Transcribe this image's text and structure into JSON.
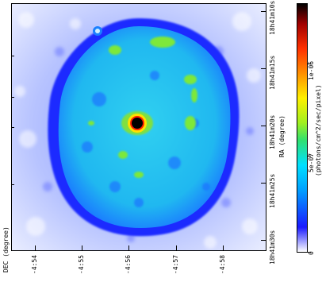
{
  "dec_axis": {
    "label": "DEC (degree)",
    "ticks": [
      "-4:54",
      "-4:55",
      "-4:56",
      "-4:57",
      "-4:58"
    ]
  },
  "ra_axis": {
    "label": "RA (degree)",
    "ticks": [
      "18h41m10s",
      "18h41m15s",
      "18h41m20s",
      "18h41m25s",
      "18h41m30s"
    ]
  },
  "colorbar": {
    "label": "(photons/cm^2/sec/pixel)",
    "ticks": [
      "0",
      "5e-07",
      "1e-06"
    ]
  },
  "colors": {
    "background": "#ffffff",
    "outer_halo": "#a8b8ff",
    "shell_ring": "#1c2bff",
    "interior": "#28c8f0",
    "bright_knots": "#7de83a",
    "central_source_core": "#000000",
    "central_source_ring": "#ff2000"
  }
}
